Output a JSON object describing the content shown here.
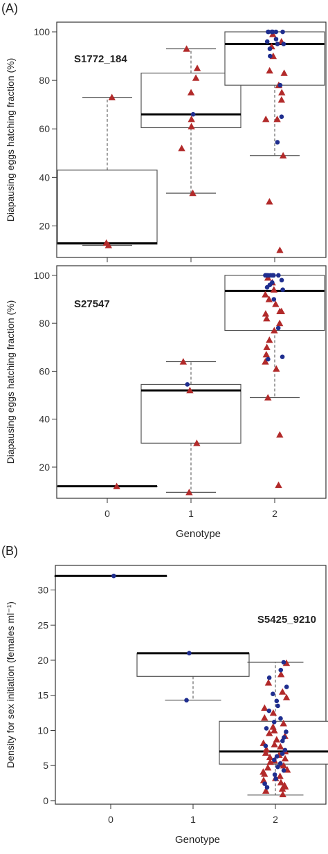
{
  "panel_labels": [
    "(A)",
    "(B)"
  ],
  "colors": {
    "triangle": "#b22a2a",
    "circle": "#1f2e8f",
    "box": "#555555",
    "median": "#000000",
    "whisker": "#666666"
  },
  "chart_data": [
    {
      "type": "box",
      "panel": "(A)",
      "annotation": "S1772_184",
      "ylabel": "Diapausing eggs hatching fraction (%)",
      "xlabel": "",
      "categories": [
        "0",
        "1",
        "2"
      ],
      "ylim": [
        7,
        104
      ],
      "yticks": [
        20,
        40,
        60,
        80,
        100
      ],
      "boxes": [
        {
          "category": "0",
          "lower_whisker": 12,
          "q1": 12.5,
          "median": 12.8,
          "q3": 43,
          "upper_whisker": 73
        },
        {
          "category": "1",
          "lower_whisker": 33.5,
          "q1": 60.5,
          "median": 66,
          "q3": 83,
          "upper_whisker": 93
        },
        {
          "category": "2",
          "lower_whisker": 49,
          "q1": 78,
          "median": 95,
          "q3": 100,
          "upper_whisker": 100
        }
      ],
      "points": [
        {
          "category": "0",
          "shape": "triangle",
          "values": [
            73,
            12,
            13
          ]
        },
        {
          "category": "1",
          "shape": "triangle",
          "values": [
            93,
            85,
            81,
            75,
            64,
            61,
            52,
            33.5
          ]
        },
        {
          "category": "1",
          "shape": "circle",
          "values": [
            66
          ]
        },
        {
          "category": "2",
          "shape": "triangle",
          "values": [
            99,
            96,
            94,
            90,
            84,
            83,
            78,
            75,
            72,
            64,
            64,
            49,
            30,
            10
          ]
        },
        {
          "category": "2",
          "shape": "circle",
          "values": [
            100,
            100,
            100,
            100,
            100,
            100,
            100,
            97,
            96,
            95,
            95,
            93,
            90,
            78,
            65,
            54.5
          ]
        }
      ]
    },
    {
      "type": "box",
      "panel": "",
      "annotation": "S27547",
      "ylabel": "Diapausing eggs hatching fraction (%)",
      "xlabel": "Genotype",
      "categories": [
        "0",
        "1",
        "2"
      ],
      "ylim": [
        7,
        104
      ],
      "yticks": [
        20,
        40,
        60,
        80,
        100
      ],
      "boxes": [
        {
          "category": "0",
          "lower_whisker": 12,
          "q1": 12,
          "median": 12,
          "q3": 12,
          "upper_whisker": 12
        },
        {
          "category": "1",
          "lower_whisker": 9.5,
          "q1": 30,
          "median": 52,
          "q3": 54.5,
          "upper_whisker": 64
        },
        {
          "category": "2",
          "lower_whisker": 49,
          "q1": 77,
          "median": 93.5,
          "q3": 100,
          "upper_whisker": 100
        }
      ],
      "points": [
        {
          "category": "0",
          "shape": "triangle",
          "values": [
            12
          ]
        },
        {
          "category": "1",
          "shape": "triangle",
          "values": [
            64,
            52,
            30,
            9.5
          ]
        },
        {
          "category": "1",
          "shape": "circle",
          "values": [
            54.5
          ]
        },
        {
          "category": "2",
          "shape": "triangle",
          "values": [
            99,
            97,
            94,
            92,
            90,
            88,
            85,
            85,
            84,
            82,
            80,
            77,
            73,
            70,
            67,
            64,
            61,
            49,
            33.5,
            12.5
          ]
        },
        {
          "category": "2",
          "shape": "circle",
          "values": [
            100,
            100,
            100,
            100,
            100,
            100,
            100,
            98,
            97,
            96,
            95,
            94,
            90,
            78,
            66,
            65
          ]
        }
      ]
    },
    {
      "type": "box",
      "panel": "(B)",
      "annotation": "S5425_9210",
      "ylabel": "Density for sex initiation (females ml⁻¹)",
      "xlabel": "Genotype",
      "categories": [
        "0",
        "1",
        "2"
      ],
      "ylim": [
        -0.5,
        33.5
      ],
      "yticks": [
        0,
        5,
        10,
        15,
        20,
        25,
        30
      ],
      "boxes": [
        {
          "category": "0",
          "lower_whisker": 32,
          "q1": 32,
          "median": 32,
          "q3": 32,
          "upper_whisker": 32
        },
        {
          "category": "1",
          "lower_whisker": 14.3,
          "q1": 17.7,
          "median": 21,
          "q3": 21,
          "upper_whisker": 21
        },
        {
          "category": "2",
          "lower_whisker": 0.8,
          "q1": 5.2,
          "median": 7,
          "q3": 11.3,
          "upper_whisker": 19.7
        }
      ],
      "points": [
        {
          "category": "0",
          "shape": "circle",
          "values": [
            32
          ]
        },
        {
          "category": "1",
          "shape": "circle",
          "values": [
            21,
            14.3
          ]
        },
        {
          "category": "2",
          "shape": "triangle",
          "values": [
            19.6,
            18,
            16.8,
            15.5,
            14.7,
            13.2,
            12.5,
            11.8,
            11,
            10.5,
            10,
            9.6,
            9.2,
            8.7,
            8.2,
            8,
            7.7,
            7.3,
            7,
            6.8,
            6.5,
            6.2,
            6,
            5.7,
            5.5,
            5.2,
            5,
            4.7,
            4.4,
            4.1,
            3.8,
            3.5,
            3.2,
            2.9,
            2.6,
            2.2,
            2,
            1.7,
            1.4,
            0.9
          ]
        },
        {
          "category": "2",
          "shape": "circle",
          "values": [
            19.7,
            18.6,
            17.5,
            16.2,
            15.2,
            14.2,
            13.5,
            12.8,
            11.7,
            11.2,
            10.3,
            9.8,
            9,
            8.5,
            7.8,
            7.2,
            6.7,
            6.3,
            5.8,
            5.3,
            4.8,
            4.3,
            3.7,
            3.1,
            2.4,
            1.9
          ]
        }
      ]
    }
  ]
}
